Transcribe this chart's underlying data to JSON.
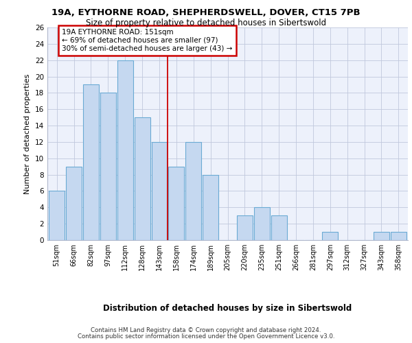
{
  "title1": "19A, EYTHORNE ROAD, SHEPHERDSWELL, DOVER, CT15 7PB",
  "title2": "Size of property relative to detached houses in Sibertswold",
  "xlabel": "Distribution of detached houses by size in Sibertswold",
  "ylabel": "Number of detached properties",
  "categories": [
    "51sqm",
    "66sqm",
    "82sqm",
    "97sqm",
    "112sqm",
    "128sqm",
    "143sqm",
    "158sqm",
    "174sqm",
    "189sqm",
    "205sqm",
    "220sqm",
    "235sqm",
    "251sqm",
    "266sqm",
    "281sqm",
    "297sqm",
    "312sqm",
    "327sqm",
    "343sqm",
    "358sqm"
  ],
  "values": [
    6,
    9,
    19,
    18,
    22,
    15,
    12,
    9,
    12,
    8,
    0,
    3,
    4,
    3,
    0,
    0,
    1,
    0,
    0,
    1,
    1
  ],
  "bar_color": "#c5d8f0",
  "bar_edge_color": "#6aaad4",
  "vline_x": 6.5,
  "vline_color": "#cc0000",
  "annotation_text": "19A EYTHORNE ROAD: 151sqm\n← 69% of detached houses are smaller (97)\n30% of semi-detached houses are larger (43) →",
  "annotation_box_color": "#ffffff",
  "annotation_box_edge": "#cc0000",
  "ylim": [
    0,
    26
  ],
  "yticks": [
    0,
    2,
    4,
    6,
    8,
    10,
    12,
    14,
    16,
    18,
    20,
    22,
    24,
    26
  ],
  "background_color": "#edf1fb",
  "footer1": "Contains HM Land Registry data © Crown copyright and database right 2024.",
  "footer2": "Contains public sector information licensed under the Open Government Licence v3.0."
}
